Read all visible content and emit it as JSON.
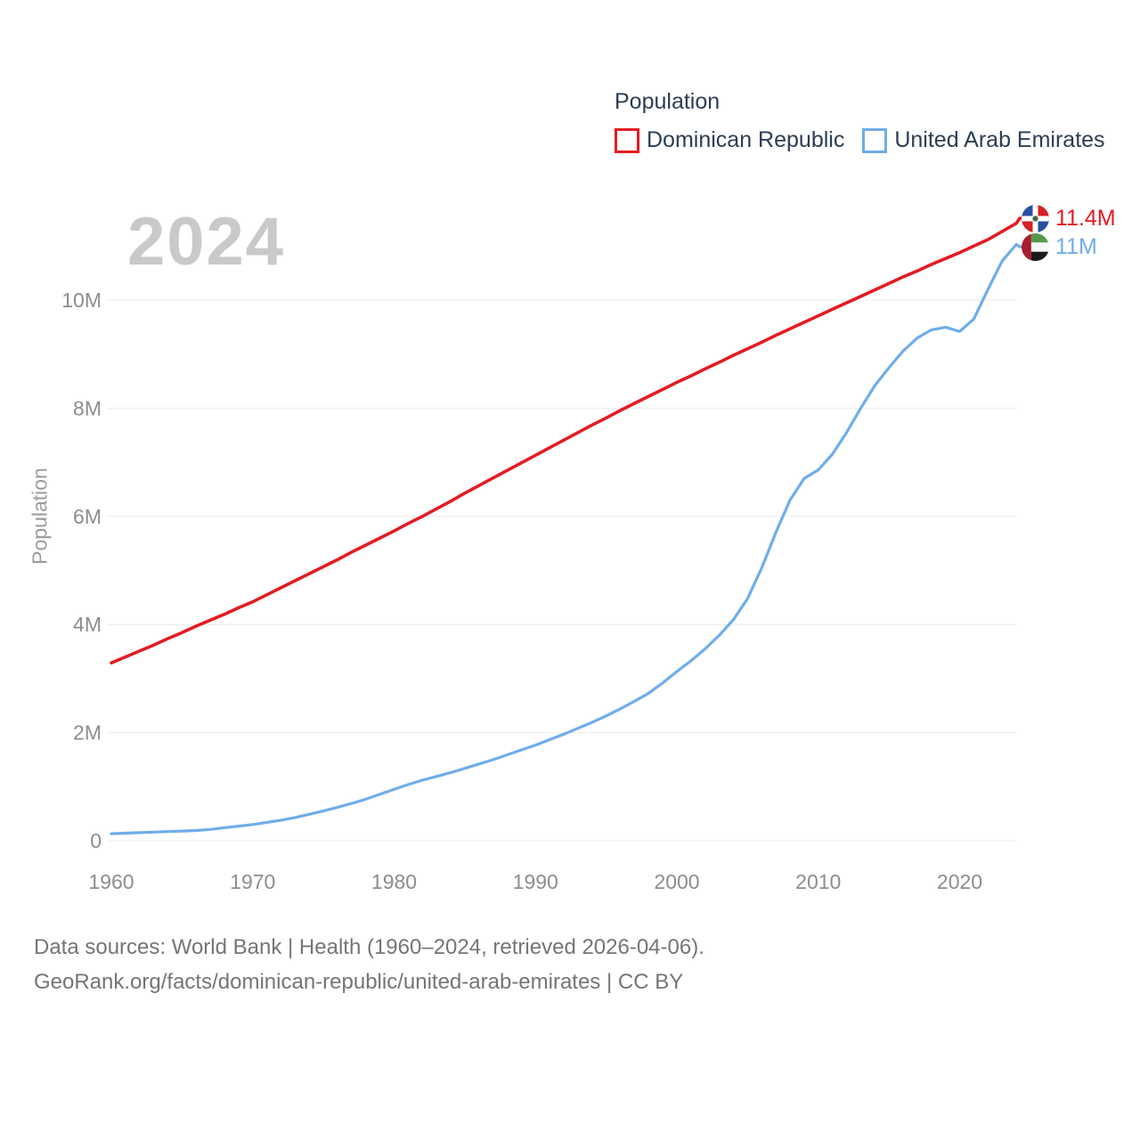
{
  "watermark": "2024",
  "legend": {
    "title": "Population",
    "series": [
      {
        "label": "Dominican Republic",
        "swatch_color": "#e31b23"
      },
      {
        "label": "United Arab Emirates",
        "swatch_color": "#6fadea"
      }
    ]
  },
  "end_labels": [
    {
      "flag": "dominican-republic-flag",
      "value": "11.4M",
      "color": "#e31b23"
    },
    {
      "flag": "united-arab-emirates-flag",
      "value": "11M",
      "color": "#6fadea"
    }
  ],
  "y_axis_title": "Population",
  "footer": {
    "line1": "Data sources: World Bank | Health (1960–2024, retrieved 2026-04-06).",
    "line2": "GeoRank.org/facts/dominican-republic/united-arab-emirates | CC BY"
  },
  "chart_data": {
    "type": "line",
    "title": "Population",
    "current_year_label": "2024",
    "xlabel": "",
    "ylabel": "Population",
    "ylim": [
      0,
      11.6
    ],
    "yticks": [
      0,
      2,
      4,
      6,
      8,
      10
    ],
    "ytick_labels": [
      "0",
      "2M",
      "4M",
      "6M",
      "8M",
      "10M"
    ],
    "xticks": [
      1960,
      1970,
      1980,
      1990,
      2000,
      2010,
      2020
    ],
    "grid": "horizontal",
    "legend_position": "top-right",
    "x": [
      1960,
      1961,
      1962,
      1963,
      1964,
      1965,
      1966,
      1967,
      1968,
      1969,
      1970,
      1971,
      1972,
      1973,
      1974,
      1975,
      1976,
      1977,
      1978,
      1979,
      1980,
      1981,
      1982,
      1983,
      1984,
      1985,
      1986,
      1987,
      1988,
      1989,
      1990,
      1991,
      1992,
      1993,
      1994,
      1995,
      1996,
      1997,
      1998,
      1999,
      2000,
      2001,
      2002,
      2003,
      2004,
      2005,
      2006,
      2007,
      2008,
      2009,
      2010,
      2011,
      2012,
      2013,
      2014,
      2015,
      2016,
      2017,
      2018,
      2019,
      2020,
      2021,
      2022,
      2023,
      2024
    ],
    "series": [
      {
        "name": "Dominican Republic",
        "color": "#e31b23",
        "end_label": "11.4M",
        "values": [
          3.29,
          3.4,
          3.51,
          3.62,
          3.74,
          3.85,
          3.97,
          4.08,
          4.19,
          4.31,
          4.42,
          4.55,
          4.68,
          4.81,
          4.94,
          5.07,
          5.2,
          5.34,
          5.47,
          5.6,
          5.73,
          5.87,
          6.0,
          6.14,
          6.28,
          6.43,
          6.57,
          6.71,
          6.85,
          6.99,
          7.13,
          7.27,
          7.41,
          7.55,
          7.69,
          7.82,
          7.96,
          8.09,
          8.22,
          8.35,
          8.48,
          8.6,
          8.73,
          8.85,
          8.98,
          9.1,
          9.22,
          9.35,
          9.47,
          9.59,
          9.71,
          9.83,
          9.95,
          10.07,
          10.19,
          10.31,
          10.43,
          10.54,
          10.66,
          10.77,
          10.88,
          11.0,
          11.12,
          11.27,
          11.42
        ]
      },
      {
        "name": "United Arab Emirates",
        "color": "#6fadea",
        "end_label": "11M",
        "values": [
          0.13,
          0.14,
          0.15,
          0.16,
          0.17,
          0.18,
          0.19,
          0.21,
          0.24,
          0.27,
          0.3,
          0.34,
          0.38,
          0.43,
          0.49,
          0.55,
          0.62,
          0.69,
          0.77,
          0.86,
          0.95,
          1.04,
          1.12,
          1.19,
          1.26,
          1.34,
          1.42,
          1.5,
          1.59,
          1.68,
          1.77,
          1.87,
          1.97,
          2.08,
          2.19,
          2.31,
          2.44,
          2.58,
          2.73,
          2.92,
          3.13,
          3.33,
          3.55,
          3.8,
          4.09,
          4.48,
          5.05,
          5.7,
          6.3,
          6.7,
          6.86,
          7.15,
          7.55,
          8.0,
          8.42,
          8.75,
          9.06,
          9.3,
          9.45,
          9.5,
          9.42,
          9.65,
          10.2,
          10.72,
          11.03
        ]
      }
    ]
  }
}
